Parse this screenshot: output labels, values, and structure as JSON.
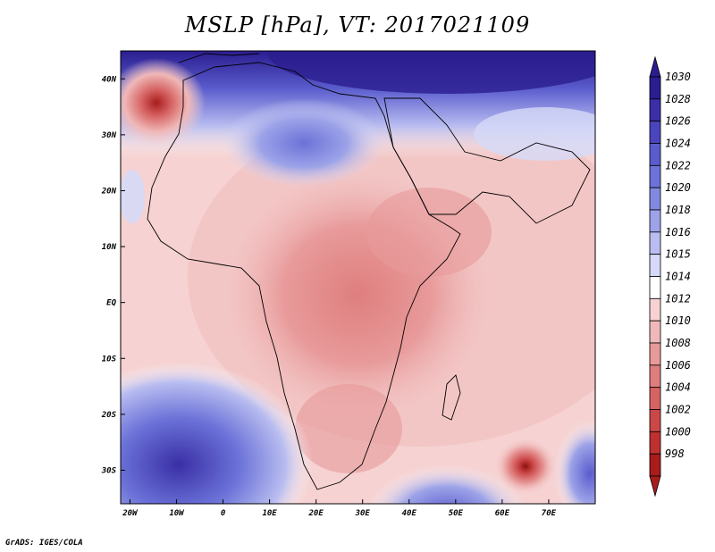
{
  "title": "MSLP [hPa], VT: 2017021109",
  "footer": "GrADS: IGES/COLA",
  "axes": {
    "lat_labels": [
      "40N",
      "30N",
      "20N",
      "10N",
      "EQ",
      "10S",
      "20S",
      "30S"
    ],
    "lat_values": [
      40,
      30,
      20,
      10,
      0,
      -10,
      -20,
      -30
    ],
    "lon_labels": [
      "20W",
      "10W",
      "0",
      "10E",
      "20E",
      "30E",
      "40E",
      "50E",
      "60E",
      "70E"
    ],
    "lon_values": [
      -20,
      -10,
      0,
      10,
      20,
      30,
      40,
      50,
      60,
      70
    ],
    "lon_range": [
      -22,
      80
    ],
    "lat_range": [
      -36,
      45
    ]
  },
  "colorbar": {
    "levels": [
      "1030",
      "1028",
      "1026",
      "1024",
      "1022",
      "1020",
      "1018",
      "1016",
      "1015",
      "1014",
      "1012",
      "1010",
      "1008",
      "1006",
      "1004",
      "1002",
      "1000",
      "998"
    ],
    "colors": [
      "#2b1d8f",
      "#3a2fa6",
      "#4a45bd",
      "#5a5ccd",
      "#6b72d8",
      "#8289e0",
      "#9da3e8",
      "#b9bdf0",
      "#d6d9f7",
      "#ffffff",
      "#f6d2d2",
      "#f0b8b8",
      "#e89a9a",
      "#df7e7e",
      "#d66363",
      "#cc4848",
      "#bf3030",
      "#a81c1c"
    ]
  },
  "features": {
    "high_centers": [
      {
        "lon": 55,
        "lat": 44,
        "level": 1030
      },
      {
        "lon": 22,
        "lat": 28,
        "level": 1022
      },
      {
        "lon": -12,
        "lat": -30,
        "level": 1024
      },
      {
        "lon": 8,
        "lat": -33,
        "level": 1020
      },
      {
        "lon": 47,
        "lat": -34,
        "level": 1020
      }
    ],
    "low_centers": [
      {
        "lon": -14,
        "lat": 35,
        "level": 1000
      },
      {
        "lon": 65,
        "lat": -30,
        "level": 998
      }
    ]
  }
}
